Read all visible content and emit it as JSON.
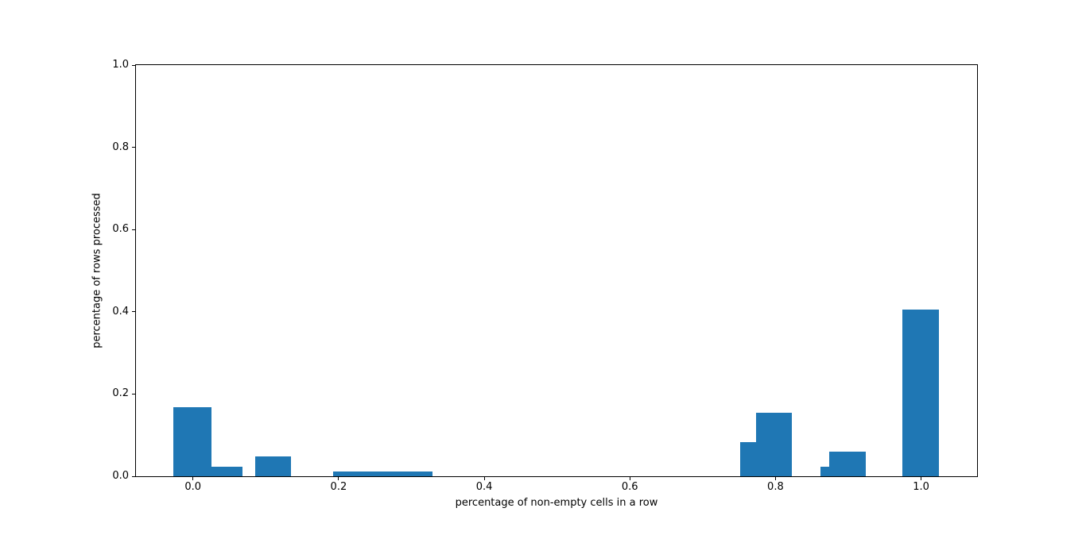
{
  "figure": {
    "background": "#ffffff",
    "text_color": "#000000",
    "spine_color": "#000000"
  },
  "chart_data": {
    "type": "bar",
    "subtype": "histogram",
    "title": "",
    "xlabel": "percentage of non-empty cells in a row",
    "ylabel": "percentage of rows processed",
    "bar_color": "#1f77b4",
    "grid": false,
    "legend": null,
    "xlim": [
      -0.0783,
      1.0769
    ],
    "ylim": [
      0,
      1.0
    ],
    "xticks": {
      "values": [
        0.0,
        0.2,
        0.4,
        0.6,
        0.8,
        1.0
      ],
      "labels": [
        "0.0",
        "0.2",
        "0.4",
        "0.6",
        "0.8",
        "1.0"
      ]
    },
    "yticks": {
      "values": [
        0.0,
        0.2,
        0.4,
        0.6,
        0.8,
        1.0
      ],
      "labels": [
        "0.0",
        "0.2",
        "0.4",
        "0.6",
        "0.8",
        "1.0"
      ]
    },
    "bars": [
      {
        "x_start": -0.027,
        "x_end": 0.025,
        "height": 0.168
      },
      {
        "x_start": 0.025,
        "x_end": 0.068,
        "height": 0.023
      },
      {
        "x_start": 0.085,
        "x_end": 0.135,
        "height": 0.049
      },
      {
        "x_start": 0.192,
        "x_end": 0.329,
        "height": 0.012
      },
      {
        "x_start": 0.751,
        "x_end": 0.773,
        "height": 0.083
      },
      {
        "x_start": 0.773,
        "x_end": 0.822,
        "height": 0.154
      },
      {
        "x_start": 0.862,
        "x_end": 0.874,
        "height": 0.023
      },
      {
        "x_start": 0.874,
        "x_end": 0.924,
        "height": 0.06
      },
      {
        "x_start": 0.974,
        "x_end": 1.025,
        "height": 0.405
      }
    ]
  }
}
